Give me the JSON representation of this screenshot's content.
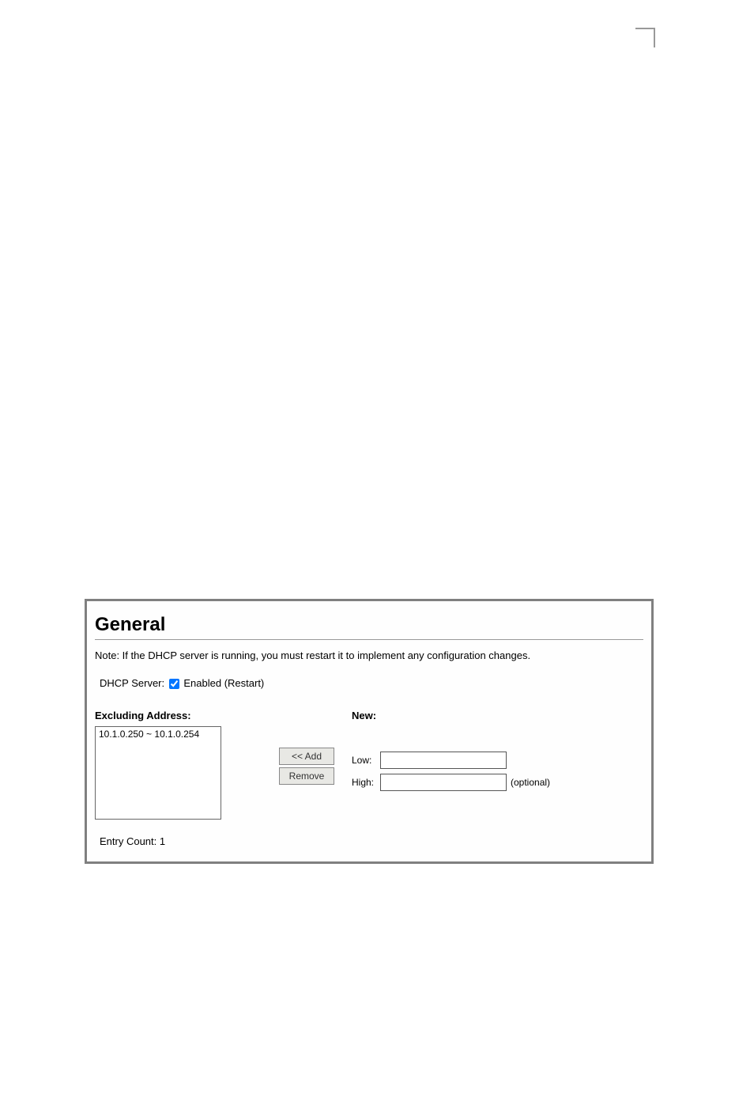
{
  "panel": {
    "heading": "General",
    "note": "Note: If the DHCP server is running, you must restart it to implement any configuration changes.",
    "server_label_prefix": "DHCP Server:",
    "server_enabled": true,
    "server_label_suffix": "Enabled (Restart)",
    "excluding_label": "Excluding Address:",
    "list_items": [
      "10.1.0.250 ~ 10.1.0.254"
    ],
    "add_btn": "<< Add",
    "remove_btn": "Remove",
    "new_label": "New:",
    "low_label": "Low:",
    "high_label": "High:",
    "optional_text": "(optional)",
    "entry_count_label": "Entry Count: 1",
    "low_value": "",
    "high_value": ""
  },
  "style": {
    "panel_border": "#808080",
    "panel_bg": "#fefefe",
    "heading_font_size": 24,
    "body_font_size": 13,
    "small_font_size": 12,
    "button_bg": "#e8e8e4",
    "button_border": "#888888",
    "input_border": "#555555",
    "divider_color": "#999999"
  }
}
